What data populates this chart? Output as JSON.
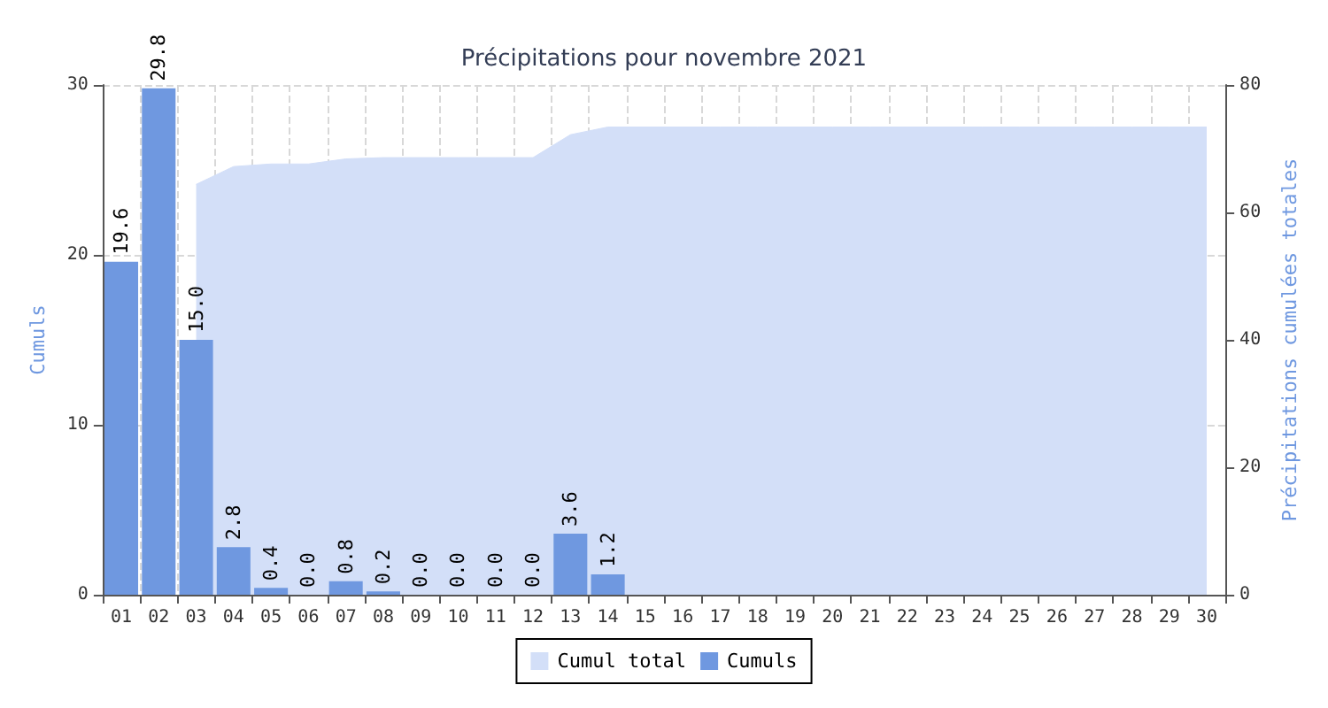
{
  "chart_data": {
    "type": "bar",
    "title": "Précipitations pour novembre 2021",
    "ylabel": "Cumuls",
    "y2label": "Précipitations cumulées totales",
    "categories": [
      "01",
      "02",
      "03",
      "04",
      "05",
      "06",
      "07",
      "08",
      "09",
      "10",
      "11",
      "12",
      "13",
      "14",
      "15",
      "16",
      "17",
      "18",
      "19",
      "20",
      "21",
      "22",
      "23",
      "24",
      "25",
      "26",
      "27",
      "28",
      "29",
      "30"
    ],
    "series": [
      {
        "name": "Cumul total",
        "type": "area",
        "axis": "y2",
        "color": "#d3dff8",
        "marker": "none",
        "values": [
          null,
          null,
          64.4,
          67.2,
          67.6,
          67.6,
          68.4,
          68.6,
          68.6,
          68.6,
          68.6,
          68.6,
          72.2,
          73.4,
          73.4,
          73.4,
          73.4,
          73.4,
          73.4,
          73.4,
          73.4,
          73.4,
          73.4,
          73.4,
          73.4,
          73.4,
          73.4,
          73.4,
          73.4,
          73.4
        ]
      },
      {
        "name": "Cumuls",
        "color": "#6f98e0",
        "values": [
          19.6,
          29.8,
          15.0,
          2.8,
          0.4,
          0.0,
          0.8,
          0.2,
          0.0,
          0.0,
          0.0,
          0.0,
          3.6,
          1.2,
          null,
          null,
          null,
          null,
          null,
          null,
          null,
          null,
          null,
          null,
          null,
          null,
          null,
          null,
          null,
          null
        ],
        "value_labels": [
          "19.6",
          "29.8",
          "15.0",
          "2.8",
          "0.4",
          "0.0",
          "0.8",
          "0.2",
          "0.0",
          "0.0",
          "0.0",
          "0.0",
          "3.6",
          "1.2",
          null,
          null,
          null,
          null,
          null,
          null,
          null,
          null,
          null,
          null,
          null,
          null,
          null,
          null,
          null,
          null
        ]
      }
    ],
    "ylim": [
      0,
      30
    ],
    "yticks": [
      0,
      10,
      20,
      30
    ],
    "y2lim": [
      0,
      80
    ],
    "y2ticks": [
      0,
      20,
      40,
      60,
      80
    ],
    "grid": true,
    "legend": "bottom",
    "line_style": "dashed"
  }
}
